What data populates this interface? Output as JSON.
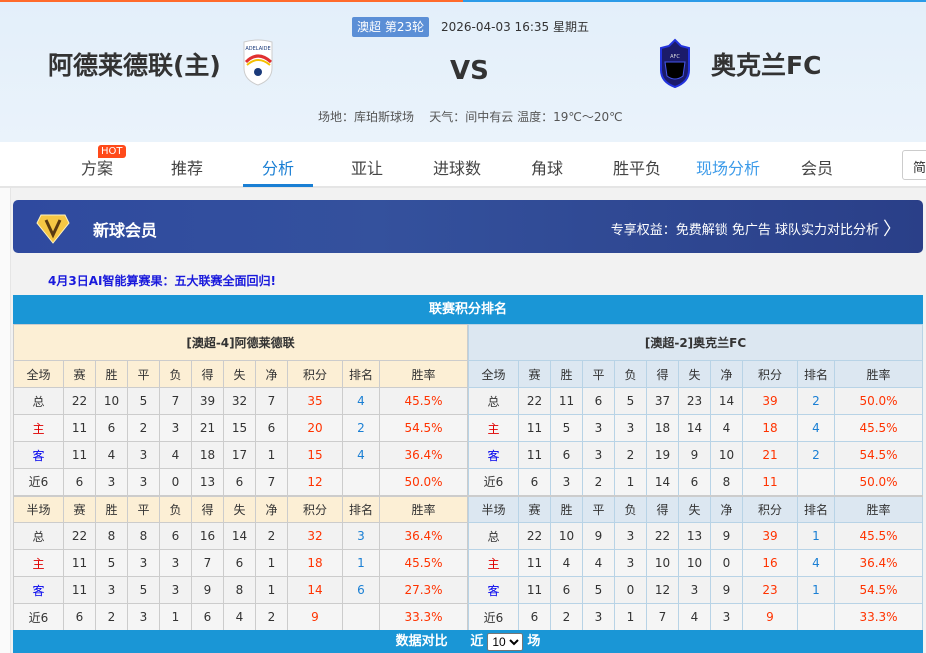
{
  "match": {
    "round": "澳超 第23轮",
    "time": "2026-04-03 16:35 星期五",
    "home": "阿德莱德联(主)",
    "away": "奥克兰FC",
    "vs": "VS",
    "venue": "场地：库珀斯球场",
    "weather": "天气：间中有云 温度：19℃～20℃"
  },
  "nav": {
    "items": [
      {
        "label": "方案",
        "badge": "HOT"
      },
      {
        "label": "推荐"
      },
      {
        "label": "分析",
        "active": true
      },
      {
        "label": "亚让"
      },
      {
        "label": "进球数"
      },
      {
        "label": "角球"
      },
      {
        "label": "胜平负"
      },
      {
        "label": "现场分析"
      },
      {
        "label": "会员"
      }
    ],
    "lang": "简"
  },
  "banner": {
    "title": "新球会员",
    "benefits": "专享权益：免费解锁 免广告 球队实力对比分析"
  },
  "ai_link": "4月3日AI智能算赛果：五大联赛全面回归!",
  "standings": {
    "title": "联赛积分排名",
    "columns": [
      "赛",
      "胜",
      "平",
      "负",
      "得",
      "失",
      "净",
      "积分",
      "排名",
      "胜率"
    ],
    "home": {
      "team": "[澳超-4]阿德莱德联",
      "full": {
        "label": "全场",
        "rows": [
          [
            "总",
            "22",
            "10",
            "5",
            "7",
            "39",
            "32",
            "7",
            "35",
            "4",
            "45.5%"
          ],
          [
            "主",
            "11",
            "6",
            "2",
            "3",
            "21",
            "15",
            "6",
            "20",
            "2",
            "54.5%"
          ],
          [
            "客",
            "11",
            "4",
            "3",
            "4",
            "18",
            "17",
            "1",
            "15",
            "4",
            "36.4%"
          ],
          [
            "近6",
            "6",
            "3",
            "3",
            "0",
            "13",
            "6",
            "7",
            "12",
            "",
            "50.0%"
          ]
        ]
      },
      "half": {
        "label": "半场",
        "rows": [
          [
            "总",
            "22",
            "8",
            "8",
            "6",
            "16",
            "14",
            "2",
            "32",
            "3",
            "36.4%"
          ],
          [
            "主",
            "11",
            "5",
            "3",
            "3",
            "7",
            "6",
            "1",
            "18",
            "1",
            "45.5%"
          ],
          [
            "客",
            "11",
            "3",
            "5",
            "3",
            "9",
            "8",
            "1",
            "14",
            "6",
            "27.3%"
          ],
          [
            "近6",
            "6",
            "2",
            "3",
            "1",
            "6",
            "4",
            "2",
            "9",
            "",
            "33.3%"
          ]
        ]
      }
    },
    "away": {
      "team": "[澳超-2]奥克兰FC",
      "full": {
        "label": "全场",
        "rows": [
          [
            "总",
            "22",
            "11",
            "6",
            "5",
            "37",
            "23",
            "14",
            "39",
            "2",
            "50.0%"
          ],
          [
            "主",
            "11",
            "5",
            "3",
            "3",
            "18",
            "14",
            "4",
            "18",
            "4",
            "45.5%"
          ],
          [
            "客",
            "11",
            "6",
            "3",
            "2",
            "19",
            "9",
            "10",
            "21",
            "2",
            "54.5%"
          ],
          [
            "近6",
            "6",
            "3",
            "2",
            "1",
            "14",
            "6",
            "8",
            "11",
            "",
            "50.0%"
          ]
        ]
      },
      "half": {
        "label": "半场",
        "rows": [
          [
            "总",
            "22",
            "10",
            "9",
            "3",
            "22",
            "13",
            "9",
            "39",
            "1",
            "45.5%"
          ],
          [
            "主",
            "11",
            "4",
            "4",
            "3",
            "10",
            "10",
            "0",
            "16",
            "4",
            "36.4%"
          ],
          [
            "客",
            "11",
            "6",
            "5",
            "0",
            "12",
            "3",
            "9",
            "23",
            "1",
            "54.5%"
          ],
          [
            "近6",
            "6",
            "2",
            "3",
            "1",
            "7",
            "4",
            "3",
            "9",
            "",
            "33.3%"
          ]
        ]
      }
    }
  },
  "compare": {
    "title": "数据对比",
    "prefix": "近",
    "selected": "10",
    "suffix": "场"
  }
}
